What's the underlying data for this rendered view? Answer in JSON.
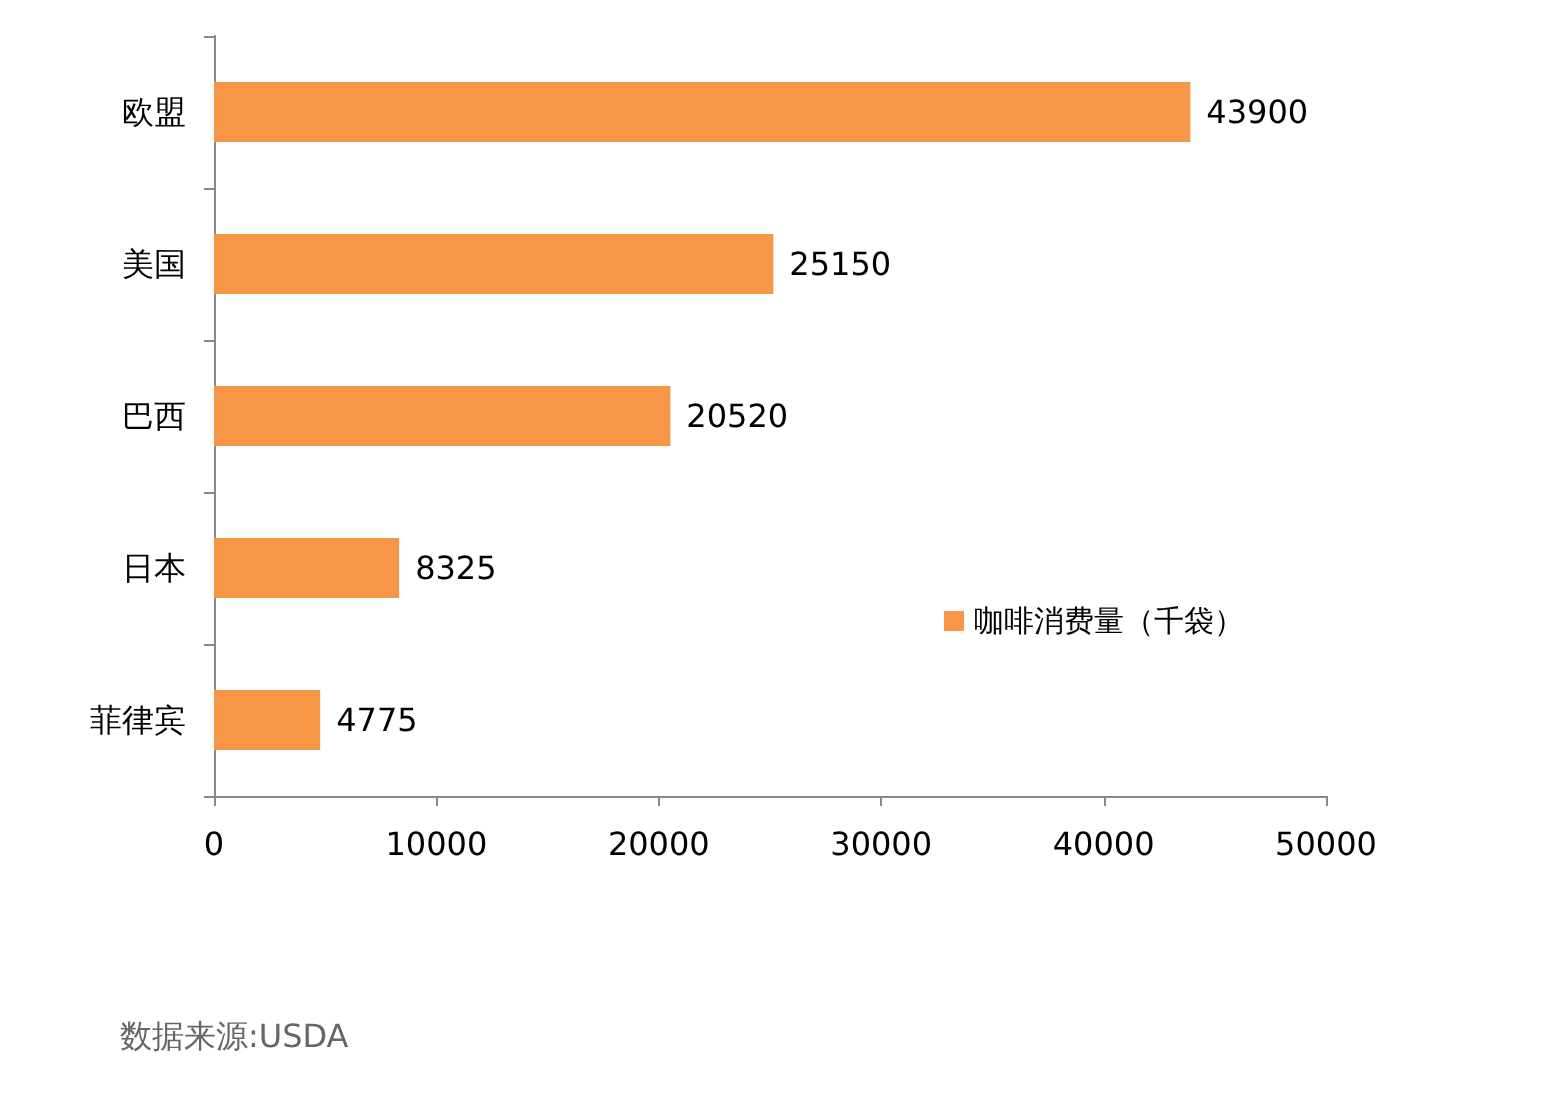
{
  "chart_data": {
    "type": "bar",
    "orientation": "horizontal",
    "categories": [
      "欧盟",
      "美国",
      "巴西",
      "日本",
      "菲律宾"
    ],
    "series": [
      {
        "name": "咖啡消费量（千袋）",
        "color": "#f79646",
        "values": [
          43900,
          25150,
          20520,
          8325,
          4775
        ]
      }
    ],
    "xlim": [
      0,
      50000
    ],
    "xticks": [
      0,
      10000,
      20000,
      30000,
      40000,
      50000
    ],
    "data_labels": true,
    "grid": false,
    "legend": "bottom right",
    "annotations": [
      "数据来源:USDA"
    ]
  }
}
